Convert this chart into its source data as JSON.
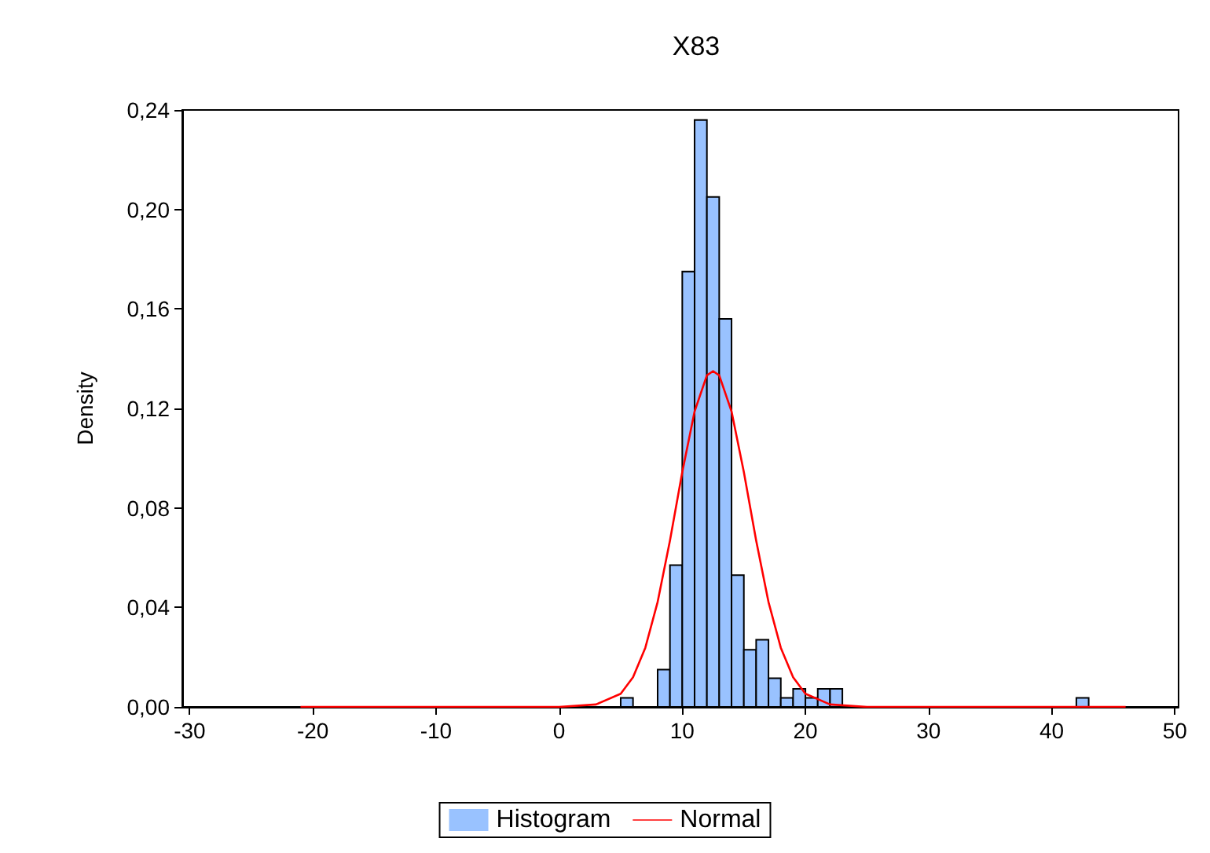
{
  "chart_data": {
    "type": "histogram",
    "title": "X83",
    "ylabel": "Density",
    "bins": [
      5,
      6,
      7,
      8,
      9,
      10,
      11,
      12,
      13,
      14,
      15,
      16,
      17,
      18,
      19,
      20,
      21,
      22,
      23,
      24,
      25,
      26,
      27,
      28,
      29,
      30,
      31,
      32,
      33,
      34,
      35,
      36,
      37,
      38,
      39,
      40,
      41,
      42,
      43
    ],
    "series": [
      {
        "name": "Histogram",
        "color": "#99c2ff",
        "values": [
          0.0036,
          0,
          0,
          0.015,
          0.057,
          0.175,
          0.236,
          0.205,
          0.156,
          0.053,
          0.023,
          0.027,
          0.0115,
          0.0036,
          0.0073,
          0.0036,
          0.0073,
          0.0073,
          0,
          0,
          0,
          0,
          0,
          0,
          0,
          0,
          0,
          0,
          0,
          0,
          0,
          0,
          0,
          0,
          0,
          0,
          0,
          0.0036
        ]
      },
      {
        "type": "line",
        "name": "Normal",
        "color": "#ff0000",
        "x": [
          -21,
          0,
          3,
          5,
          6,
          7,
          8,
          9,
          10,
          11,
          12,
          12.5,
          13,
          14,
          15,
          16,
          17,
          18,
          19,
          20,
          22,
          25,
          46
        ],
        "values": [
          0,
          0,
          0.001,
          0.0053,
          0.0119,
          0.0238,
          0.0422,
          0.0669,
          0.0944,
          0.1188,
          0.1333,
          0.135,
          0.1333,
          0.1188,
          0.0944,
          0.0669,
          0.0422,
          0.0238,
          0.0119,
          0.0053,
          0.001,
          0,
          0
        ]
      }
    ],
    "xlim": [
      -30.6,
      50.3
    ],
    "xticks": [
      -30,
      -20,
      -10,
      0,
      10,
      20,
      30,
      40,
      50
    ],
    "ylim": [
      0,
      0.24
    ],
    "yticks": [
      {
        "value": 0,
        "label": "0,00"
      },
      {
        "value": 0.04,
        "label": "0,04"
      },
      {
        "value": 0.08,
        "label": "0,08"
      },
      {
        "value": 0.12,
        "label": "0,12"
      },
      {
        "value": 0.16,
        "label": "0,16"
      },
      {
        "value": 0.2,
        "label": "0,20"
      },
      {
        "value": 0.24,
        "label": "0,24"
      }
    ],
    "grid": false,
    "legend": "bottom"
  }
}
